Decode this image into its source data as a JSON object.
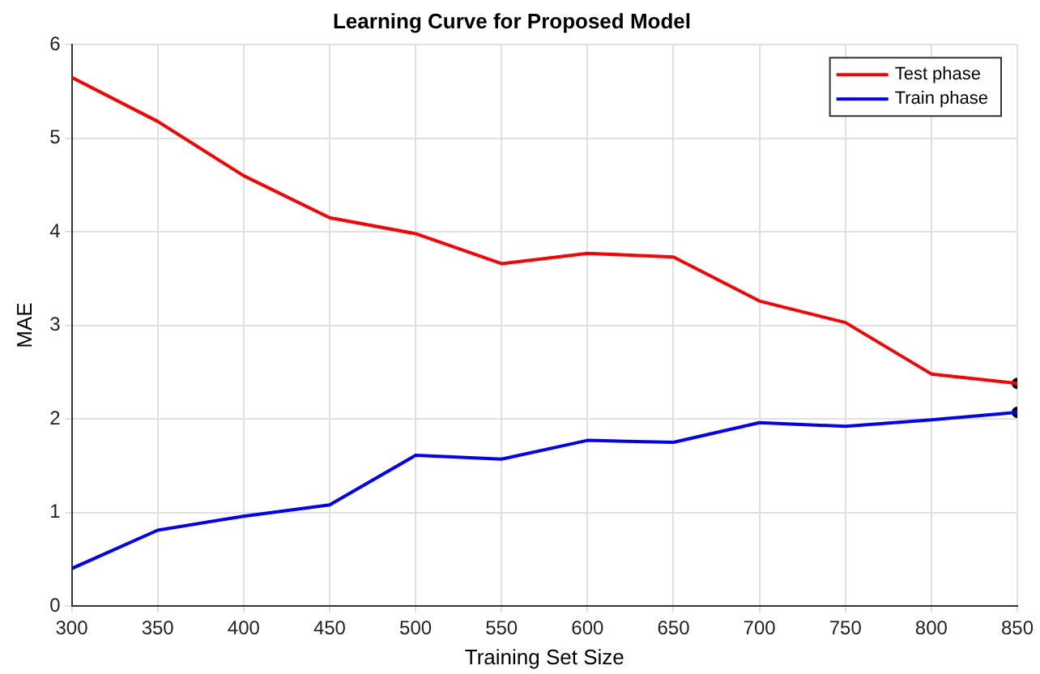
{
  "chart_data": {
    "type": "line",
    "title": "Learning Curve for Proposed Model",
    "xlabel": "Training Set Size",
    "ylabel": "MAE",
    "x": [
      300,
      350,
      400,
      450,
      500,
      550,
      600,
      650,
      700,
      750,
      800,
      850
    ],
    "series": [
      {
        "name": "Test phase",
        "color": "#ff0000",
        "values": [
          5.65,
          5.18,
          4.6,
          4.15,
          3.98,
          3.66,
          3.77,
          3.73,
          3.26,
          3.03,
          2.48,
          2.38
        ]
      },
      {
        "name": "Train phase",
        "color": "#0000ff",
        "values": [
          0.4,
          0.81,
          0.96,
          1.08,
          1.61,
          1.57,
          1.77,
          1.75,
          1.96,
          1.92,
          1.99,
          2.07
        ]
      },
      {
        "type": "scatter",
        "color": "#000000",
        "x": [
          850,
          850
        ],
        "values": [
          2.38,
          2.07
        ],
        "marker": "circle"
      }
    ],
    "xlim": [
      300,
      850
    ],
    "xticks": [
      300,
      350,
      400,
      450,
      500,
      550,
      600,
      650,
      700,
      750,
      800,
      850
    ],
    "ylim": [
      0,
      6
    ],
    "yticks": [
      0,
      1,
      2,
      3,
      4,
      5,
      6
    ],
    "grid": true,
    "legend": "top right",
    "marker": "none",
    "line_style": "solid"
  }
}
